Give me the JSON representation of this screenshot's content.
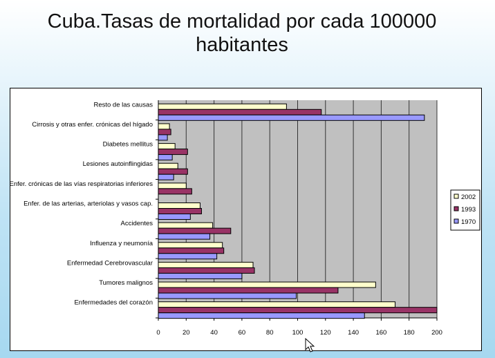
{
  "title": "Cuba.Tasas de mortalidad por cada 100000 habitantes",
  "chart_data": {
    "type": "bar",
    "orientation": "horizontal",
    "title": "Cuba.Tasas de mortalidad por cada 100000 habitantes",
    "categories": [
      "Resto de las causas",
      "Cirrosis y otras enfer. crónicas del hígado",
      "Diabetes mellitus",
      "Lesiones autoinflingidas",
      "Enfer. crónicas de las vías respiratorias inferiores",
      "Enfer. de las arterias, arteriolas y vasos cap.",
      "Accidentes",
      "Influenza y neumonía",
      "Enfermedad Cerebrovascular",
      "Tumores malignos",
      "Enfermedades del corazón"
    ],
    "series": [
      {
        "name": "2002",
        "color": "#ffffcc",
        "values": [
          92,
          8,
          12,
          14,
          20,
          30,
          39,
          46,
          68,
          156,
          170
        ]
      },
      {
        "name": "1993",
        "color": "#993366",
        "values": [
          117,
          9,
          21,
          21,
          24,
          31,
          52,
          47,
          69,
          129,
          200
        ]
      },
      {
        "name": "1970",
        "color": "#9999ff",
        "values": [
          191,
          6.5,
          10,
          11,
          0,
          23,
          37,
          42,
          60,
          99,
          148
        ]
      }
    ],
    "xlim": [
      0,
      200
    ],
    "xticks": [
      0,
      20,
      40,
      60,
      80,
      100,
      120,
      140,
      160,
      180,
      200
    ],
    "grid": true,
    "plot_background": "#c0c0c0",
    "legend": {
      "placement": "right",
      "entries": [
        "2002",
        "1993",
        "1970"
      ]
    }
  }
}
